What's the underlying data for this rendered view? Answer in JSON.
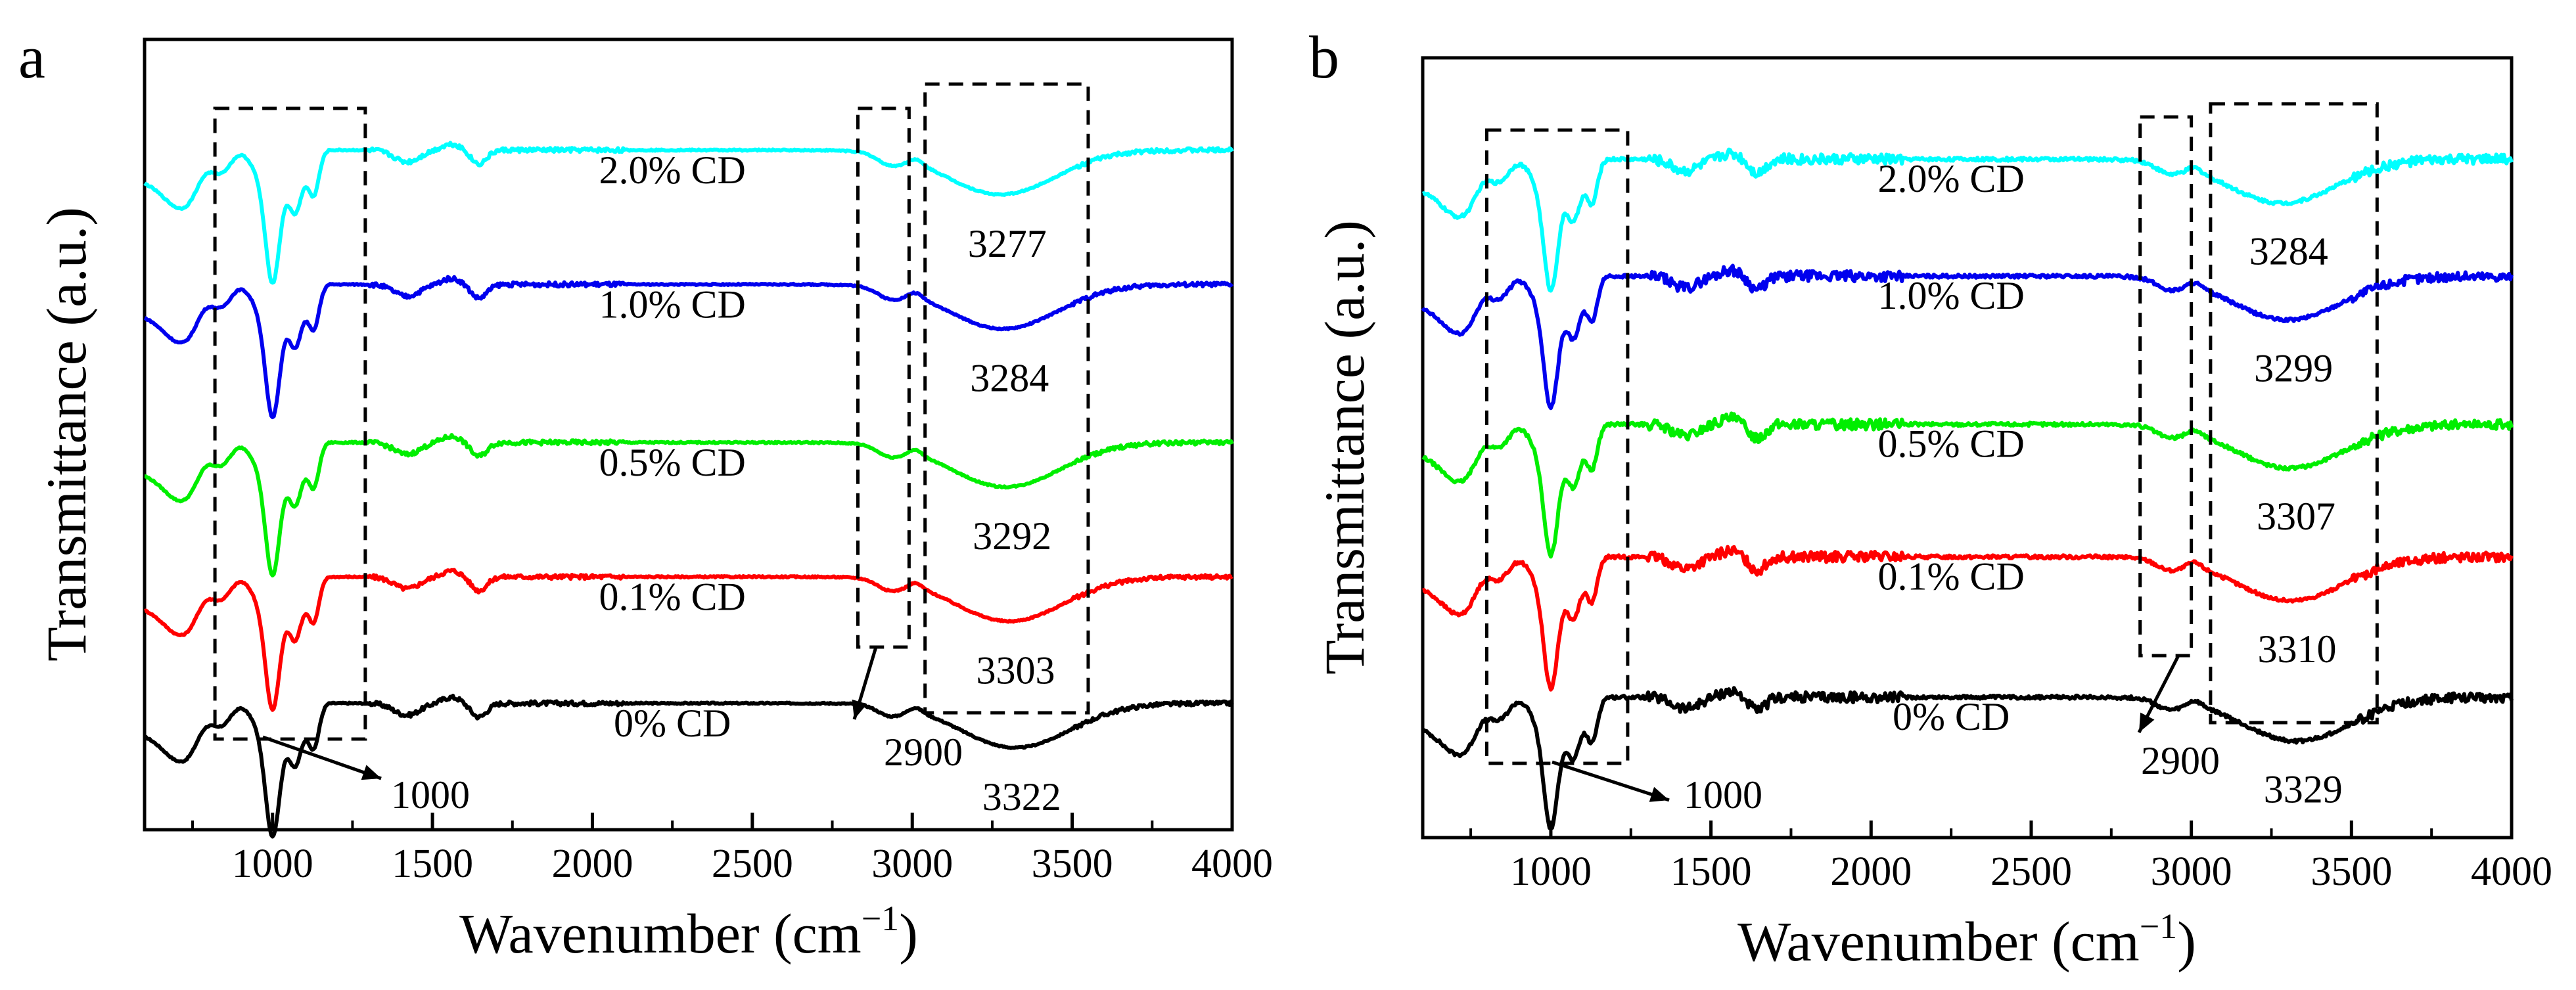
{
  "chart_data": [
    {
      "panel": "a",
      "type": "line",
      "xlabel": "Wavenumber (cm",
      "xlabel_sup": "−1",
      "xlabel_end": ")",
      "ylabel": "Transmittance (a.u.)",
      "xlim": [
        600,
        4000
      ],
      "ylim": [
        0,
        10
      ],
      "xticks": [
        1000,
        1500,
        2000,
        2500,
        3000,
        3500,
        4000
      ],
      "series": [
        {
          "name": "0% CD",
          "color": "#000000",
          "baseline": 1.6,
          "peak": "3322",
          "peak_x": 3322
        },
        {
          "name": "0.1% CD",
          "color": "#ff0000",
          "baseline": 3.2,
          "peak": "3303",
          "peak_x": 3303
        },
        {
          "name": "0.5% CD",
          "color": "#00ee00",
          "baseline": 4.9,
          "peak": "3292",
          "peak_x": 3292
        },
        {
          "name": "1.0% CD",
          "color": "#0000ee",
          "baseline": 6.9,
          "peak": "3284",
          "peak_x": 3284
        },
        {
          "name": "2.0% CD",
          "color": "#00ffff",
          "baseline": 8.6,
          "peak": "3277",
          "peak_x": 3277
        }
      ],
      "annotations": [
        {
          "text": "1000",
          "box_x": [
            820,
            1290
          ]
        },
        {
          "text": "2900",
          "box_x": [
            2830,
            2990
          ]
        },
        {
          "box_x": [
            3040,
            3550
          ]
        }
      ]
    },
    {
      "panel": "b",
      "type": "line",
      "xlabel": "Wavenumber (cm",
      "xlabel_sup": "−1",
      "xlabel_end": ")",
      "ylabel": "Transmittance (a.u.)",
      "xlim": [
        600,
        4000
      ],
      "ylim": [
        0,
        10
      ],
      "xticks": [
        1000,
        1500,
        2000,
        2500,
        3000,
        3500,
        4000
      ],
      "series": [
        {
          "name": "0% CD",
          "color": "#000000",
          "baseline": 1.8,
          "peak": "3329",
          "peak_x": 3329
        },
        {
          "name": "0.1% CD",
          "color": "#ff0000",
          "baseline": 3.6,
          "peak": "3310",
          "peak_x": 3310
        },
        {
          "name": "0.5% CD",
          "color": "#00ee00",
          "baseline": 5.3,
          "peak": "3307",
          "peak_x": 3307
        },
        {
          "name": "1.0% CD",
          "color": "#0000ee",
          "baseline": 7.2,
          "peak": "3299",
          "peak_x": 3299
        },
        {
          "name": "2.0% CD",
          "color": "#00ffff",
          "baseline": 8.7,
          "peak": "3284",
          "peak_x": 3284
        }
      ],
      "annotations": [
        {
          "text": "1000",
          "box_x": [
            800,
            1240
          ]
        },
        {
          "text": "2900",
          "box_x": [
            2840,
            3000
          ]
        },
        {
          "box_x": [
            3060,
            3580
          ]
        }
      ]
    }
  ]
}
